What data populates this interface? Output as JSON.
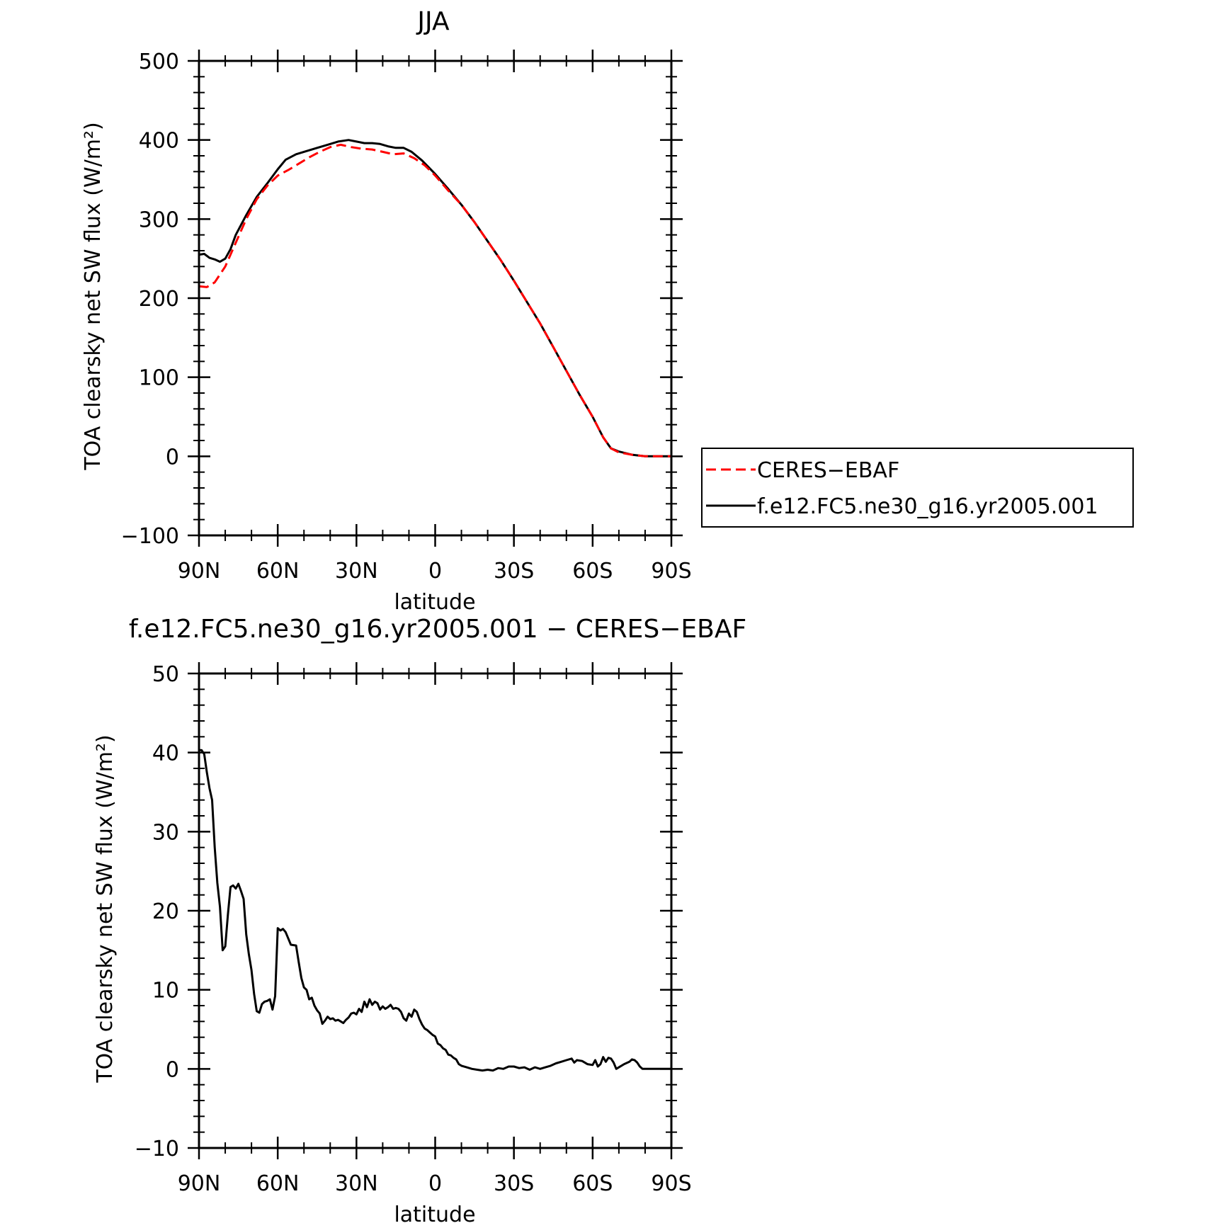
{
  "chart_data": [
    {
      "type": "line",
      "title": "JJA",
      "xlabel": "latitude",
      "ylabel": "TOA clearsky net SW flux (W/m²)",
      "xlim": [
        90,
        -90
      ],
      "ylim": [
        -100,
        500
      ],
      "xticks": [
        {
          "value": 90,
          "label": "90N"
        },
        {
          "value": 60,
          "label": "60N"
        },
        {
          "value": 30,
          "label": "30N"
        },
        {
          "value": 0,
          "label": "0"
        },
        {
          "value": -30,
          "label": "30S"
        },
        {
          "value": -60,
          "label": "60S"
        },
        {
          "value": -90,
          "label": "90S"
        }
      ],
      "yticks": [
        {
          "value": -100,
          "label": "−100"
        },
        {
          "value": 0,
          "label": "0"
        },
        {
          "value": 100,
          "label": "100"
        },
        {
          "value": 200,
          "label": "200"
        },
        {
          "value": 300,
          "label": "300"
        },
        {
          "value": 400,
          "label": "400"
        },
        {
          "value": 500,
          "label": "500"
        }
      ],
      "legend": "right",
      "series": [
        {
          "name": "CERES−EBAF",
          "color": "#ff0000",
          "dash": "dashed",
          "points": [
            [
              90,
              215
            ],
            [
              87,
              214
            ],
            [
              84,
              220
            ],
            [
              80,
              240
            ],
            [
              76,
              270
            ],
            [
              72,
              300
            ],
            [
              68,
              325
            ],
            [
              64,
              342
            ],
            [
              60,
              355
            ],
            [
              56,
              362
            ],
            [
              52,
              370
            ],
            [
              48,
              378
            ],
            [
              44,
              385
            ],
            [
              40,
              391
            ],
            [
              36,
              394
            ],
            [
              32,
              391
            ],
            [
              28,
              389
            ],
            [
              24,
              388
            ],
            [
              20,
              385
            ],
            [
              16,
              382
            ],
            [
              12,
              383
            ],
            [
              8,
              377
            ],
            [
              4,
              368
            ],
            [
              0,
              355
            ],
            [
              -5,
              336
            ],
            [
              -10,
              318
            ],
            [
              -15,
              296
            ],
            [
              -20,
              272
            ],
            [
              -25,
              248
            ],
            [
              -30,
              222
            ],
            [
              -35,
              195
            ],
            [
              -40,
              168
            ],
            [
              -45,
              138
            ],
            [
              -50,
              108
            ],
            [
              -55,
              78
            ],
            [
              -60,
              50
            ],
            [
              -64,
              24
            ],
            [
              -67,
              10
            ],
            [
              -70,
              5
            ],
            [
              -75,
              2
            ],
            [
              -80,
              0
            ],
            [
              -90,
              0
            ]
          ]
        },
        {
          "name": "f.e12.FC5.ne30_g16.yr2005.001",
          "color": "#000000",
          "dash": "solid",
          "points": [
            [
              90,
              255
            ],
            [
              88,
              256
            ],
            [
              86,
              251
            ],
            [
              84,
              249
            ],
            [
              82,
              246
            ],
            [
              80,
              250
            ],
            [
              78,
              262
            ],
            [
              76,
              280
            ],
            [
              72,
              305
            ],
            [
              68,
              328
            ],
            [
              64,
              345
            ],
            [
              60,
              363
            ],
            [
              57,
              375
            ],
            [
              53,
              382
            ],
            [
              49,
              386
            ],
            [
              45,
              390
            ],
            [
              41,
              394
            ],
            [
              37,
              398
            ],
            [
              33,
              400
            ],
            [
              30,
              398
            ],
            [
              27,
              396
            ],
            [
              24,
              396
            ],
            [
              21,
              395
            ],
            [
              18,
              392
            ],
            [
              15,
              390
            ],
            [
              12,
              390
            ],
            [
              9,
              385
            ],
            [
              5,
              374
            ],
            [
              0,
              357
            ],
            [
              -5,
              338
            ],
            [
              -10,
              318
            ],
            [
              -15,
              296
            ],
            [
              -20,
              272
            ],
            [
              -25,
              248
            ],
            [
              -30,
              222
            ],
            [
              -35,
              195
            ],
            [
              -40,
              168
            ],
            [
              -45,
              138
            ],
            [
              -50,
              108
            ],
            [
              -55,
              78
            ],
            [
              -60,
              50
            ],
            [
              -64,
              24
            ],
            [
              -67,
              10
            ],
            [
              -70,
              6
            ],
            [
              -75,
              2
            ],
            [
              -80,
              0
            ],
            [
              -90,
              0
            ]
          ]
        }
      ]
    },
    {
      "type": "line",
      "title": "f.e12.FC5.ne30_g16.yr2005.001 − CERES−EBAF",
      "xlabel": "latitude",
      "ylabel": "TOA clearsky net SW flux (W/m²)",
      "xlim": [
        90,
        -90
      ],
      "ylim": [
        -10,
        50
      ],
      "xticks": [
        {
          "value": 90,
          "label": "90N"
        },
        {
          "value": 60,
          "label": "60N"
        },
        {
          "value": 30,
          "label": "30N"
        },
        {
          "value": 0,
          "label": "0"
        },
        {
          "value": -30,
          "label": "30S"
        },
        {
          "value": -60,
          "label": "60S"
        },
        {
          "value": -90,
          "label": "90S"
        }
      ],
      "yticks": [
        {
          "value": -10,
          "label": "−10"
        },
        {
          "value": 0,
          "label": "0"
        },
        {
          "value": 10,
          "label": "10"
        },
        {
          "value": 20,
          "label": "20"
        },
        {
          "value": 30,
          "label": "30"
        },
        {
          "value": 40,
          "label": "40"
        },
        {
          "value": 50,
          "label": "50"
        }
      ],
      "series": [
        {
          "color": "#000000",
          "dash": "solid",
          "points": [
            [
              90,
              40.3
            ],
            [
              89,
              40.3
            ],
            [
              88,
              39.8
            ],
            [
              87,
              37.5
            ],
            [
              86,
              35.5
            ],
            [
              85,
              34
            ],
            [
              84,
              28
            ],
            [
              83,
              23.5
            ],
            [
              82,
              20.5
            ],
            [
              81,
              15
            ],
            [
              80,
              15.5
            ],
            [
              79,
              19.5
            ],
            [
              78,
              23
            ],
            [
              77,
              23.2
            ],
            [
              76,
              22.8
            ],
            [
              75,
              23.4
            ],
            [
              74,
              22.5
            ],
            [
              73,
              21.5
            ],
            [
              72,
              17
            ],
            [
              71,
              14.5
            ],
            [
              70,
              12.5
            ],
            [
              69,
              9.5
            ],
            [
              68,
              7.3
            ],
            [
              67,
              7.1
            ],
            [
              66,
              8.2
            ],
            [
              65,
              8.5
            ],
            [
              64,
              8.6
            ],
            [
              63,
              8.8
            ],
            [
              62,
              7.5
            ],
            [
              61,
              9.2
            ],
            [
              60,
              17.8
            ],
            [
              59,
              17.5
            ],
            [
              58,
              17.7
            ],
            [
              57,
              17.3
            ],
            [
              56,
              16.5
            ],
            [
              55,
              15.7
            ],
            [
              53,
              15.6
            ],
            [
              52,
              13.5
            ],
            [
              51,
              11.5
            ],
            [
              50,
              10.3
            ],
            [
              49,
              10
            ],
            [
              48,
              8.8
            ],
            [
              47,
              9
            ],
            [
              46,
              8
            ],
            [
              45,
              7.4
            ],
            [
              44,
              7
            ],
            [
              43,
              5.7
            ],
            [
              42,
              6.1
            ],
            [
              41,
              6.6
            ],
            [
              40,
              6.3
            ],
            [
              39,
              6.4
            ],
            [
              38,
              6.1
            ],
            [
              37,
              6.2
            ],
            [
              36,
              6
            ],
            [
              35,
              5.8
            ],
            [
              34,
              6.2
            ],
            [
              33,
              6.5
            ],
            [
              32,
              7
            ],
            [
              31,
              7.1
            ],
            [
              30,
              6.9
            ],
            [
              29,
              7.6
            ],
            [
              28,
              7.2
            ],
            [
              27,
              8.5
            ],
            [
              26,
              7.8
            ],
            [
              25,
              8.8
            ],
            [
              24,
              8.1
            ],
            [
              23,
              8.5
            ],
            [
              22,
              8.3
            ],
            [
              21,
              7.5
            ],
            [
              20,
              7.9
            ],
            [
              19,
              7.6
            ],
            [
              18,
              7.8
            ],
            [
              17,
              8.1
            ],
            [
              16,
              7.6
            ],
            [
              15,
              7.7
            ],
            [
              14,
              7.6
            ],
            [
              13,
              7.2
            ],
            [
              12,
              6.4
            ],
            [
              11,
              6.1
            ],
            [
              10,
              7
            ],
            [
              9,
              6.6
            ],
            [
              8,
              7.5
            ],
            [
              7,
              7.2
            ],
            [
              6,
              6.3
            ],
            [
              5,
              5.6
            ],
            [
              4,
              5.1
            ],
            [
              3,
              4.9
            ],
            [
              2,
              4.6
            ],
            [
              1,
              4.3
            ],
            [
              0,
              4.1
            ],
            [
              -1,
              3.2
            ],
            [
              -2,
              3
            ],
            [
              -3,
              2.6
            ],
            [
              -4,
              2.4
            ],
            [
              -5,
              1.8
            ],
            [
              -6,
              1.7
            ],
            [
              -7,
              1.4
            ],
            [
              -8,
              1.2
            ],
            [
              -9,
              0.6
            ],
            [
              -10,
              0.4
            ],
            [
              -12,
              0.2
            ],
            [
              -14,
              0
            ],
            [
              -16,
              -0.1
            ],
            [
              -18,
              -0.2
            ],
            [
              -20,
              -0.1
            ],
            [
              -22,
              -0.2
            ],
            [
              -24,
              0.1
            ],
            [
              -26,
              0
            ],
            [
              -28,
              0.3
            ],
            [
              -30,
              0.3
            ],
            [
              -32,
              0.1
            ],
            [
              -34,
              0.2
            ],
            [
              -36,
              -0.1
            ],
            [
              -38,
              0.2
            ],
            [
              -40,
              0
            ],
            [
              -42,
              0.2
            ],
            [
              -44,
              0.4
            ],
            [
              -46,
              0.7
            ],
            [
              -48,
              0.9
            ],
            [
              -50,
              1.1
            ],
            [
              -52,
              1.3
            ],
            [
              -53,
              0.8
            ],
            [
              -54,
              1.1
            ],
            [
              -56,
              1
            ],
            [
              -58,
              0.6
            ],
            [
              -60,
              0.5
            ],
            [
              -61,
              1.1
            ],
            [
              -62,
              0.3
            ],
            [
              -63,
              0.6
            ],
            [
              -64,
              1.5
            ],
            [
              -65,
              0.9
            ],
            [
              -66,
              1.4
            ],
            [
              -67,
              1.3
            ],
            [
              -68,
              0.8
            ],
            [
              -69,
              0
            ],
            [
              -70,
              0.2
            ],
            [
              -72,
              0.6
            ],
            [
              -74,
              0.9
            ],
            [
              -75,
              1.2
            ],
            [
              -76,
              1.1
            ],
            [
              -77,
              0.8
            ],
            [
              -78,
              0.3
            ],
            [
              -79,
              0
            ],
            [
              -82,
              0
            ],
            [
              -90,
              0
            ]
          ]
        }
      ]
    }
  ]
}
